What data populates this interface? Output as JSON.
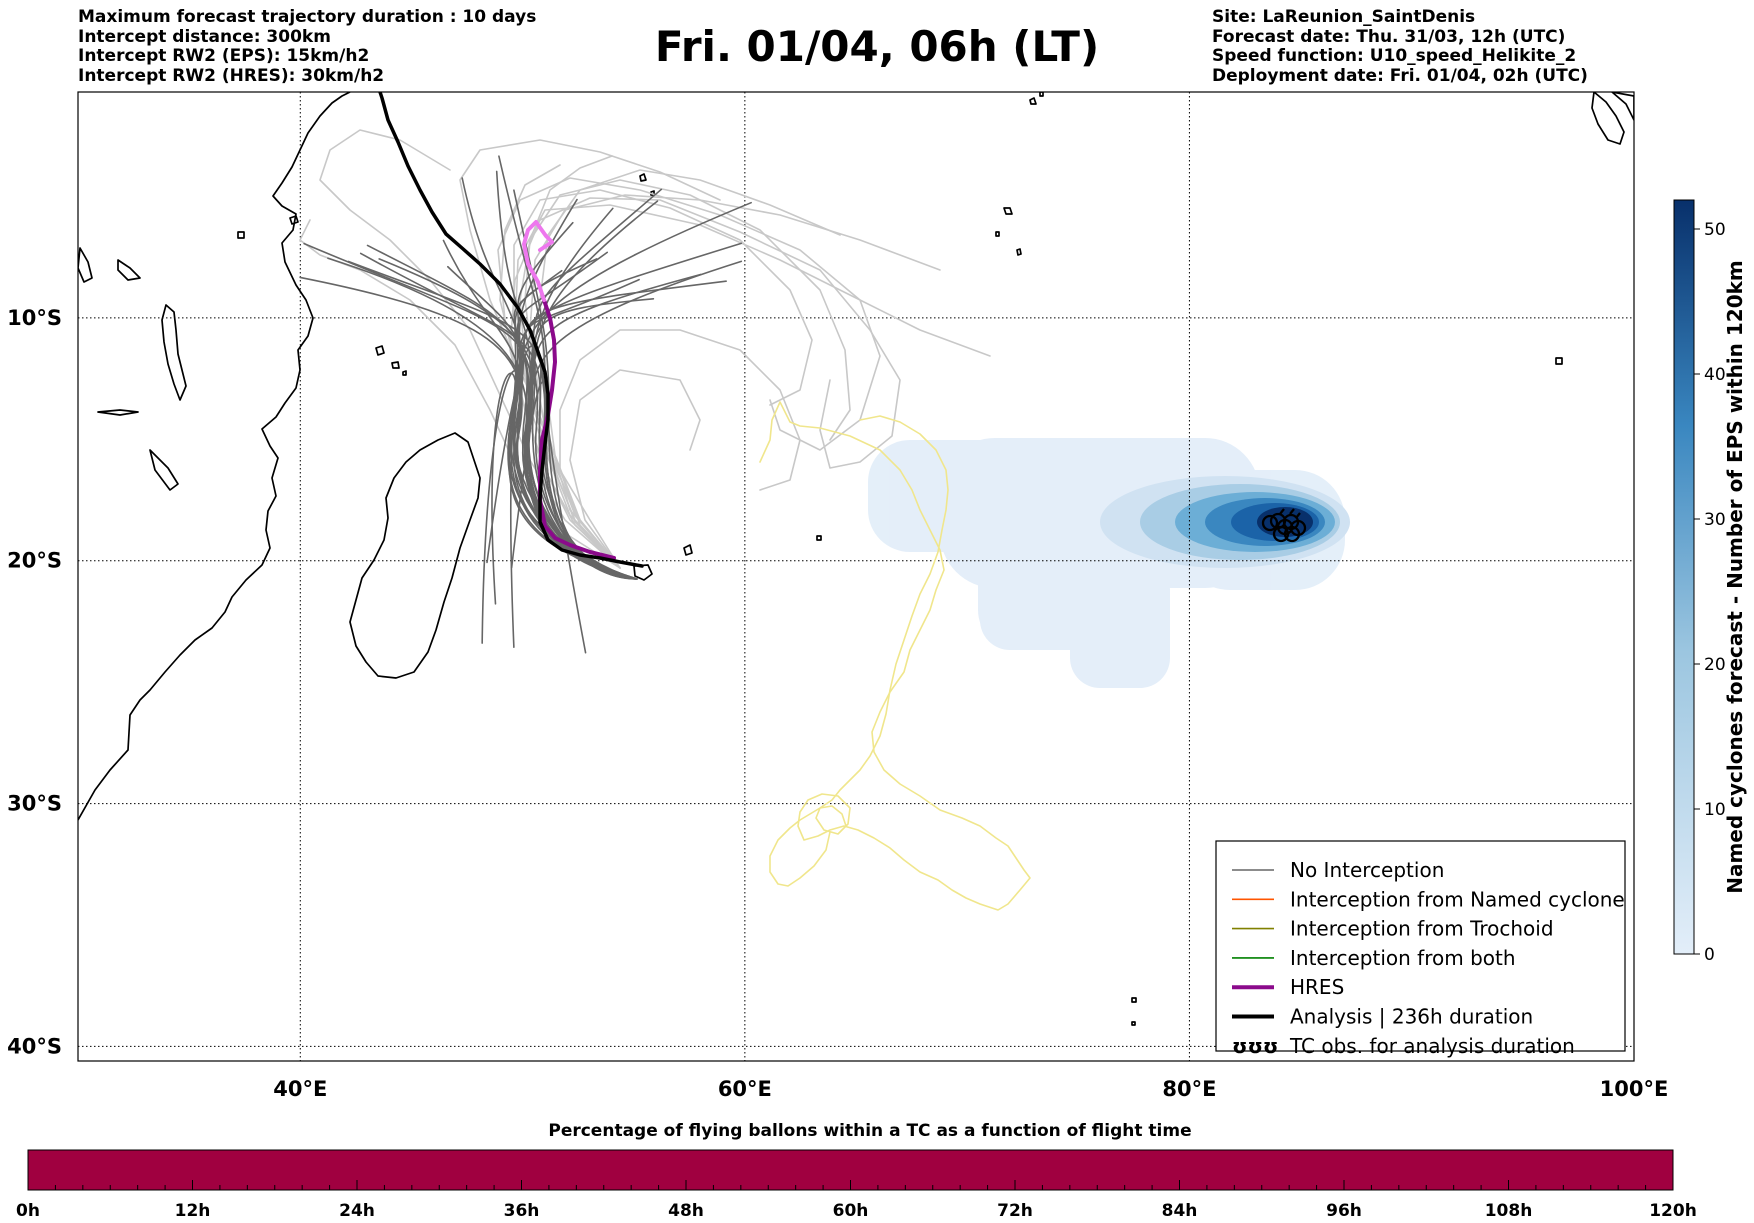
{
  "header": {
    "left": [
      "Maximum forecast trajectory duration : 10 days",
      "Intercept distance: 300km",
      "Intercept RW2 (EPS):  15km/h2",
      "Intercept RW2 (HRES): 30km/h2"
    ],
    "title": "Fri. 01/04, 06h (LT)",
    "right": [
      "Site: LaReunion_SaintDenis",
      "Forecast date: Thu. 31/03, 12h (UTC)",
      "Speed function: U10_speed_Helikite_2",
      "Deployment date: Fri. 01/04, 02h (UTC)"
    ]
  },
  "map": {
    "lon_range": [
      30,
      100
    ],
    "lat_range": [
      -40.6,
      -0.7
    ],
    "lon_ticks": [
      {
        "value": 40,
        "label": "40°E"
      },
      {
        "value": 60,
        "label": "60°E"
      },
      {
        "value": 80,
        "label": "80°E"
      },
      {
        "value": 100,
        "label": "100°E"
      }
    ],
    "lat_ticks": [
      {
        "value": -10,
        "label": "10°S"
      },
      {
        "value": -20,
        "label": "20°S"
      },
      {
        "value": -30,
        "label": "30°S"
      },
      {
        "value": -40,
        "label": "40°S"
      }
    ],
    "launch_site": {
      "lon": 55.5,
      "lat": -21.0
    },
    "colors": {
      "no_interception": "#666666",
      "eps_far": "#c8c8c8",
      "named_cyclone": "#ff5500",
      "trochoid": "#808000",
      "both": "#008000",
      "hres": "#8b0a8b",
      "hres_end": "#ee77ee",
      "analysis": "#000000",
      "trochoid_track": "#f0e68c"
    },
    "legend": [
      {
        "key": "no_interception",
        "label": "No Interception"
      },
      {
        "key": "named_cyclone",
        "label": "Interception from Named cyclone"
      },
      {
        "key": "trochoid",
        "label": "Interception from Trochoid"
      },
      {
        "key": "both",
        "label": "Interception from both"
      },
      {
        "key": "hres",
        "label": "HRES"
      },
      {
        "key": "analysis",
        "label": "Analysis | 236h duration"
      },
      {
        "key": "tc_obs",
        "label": "TC obs. for analysis duration",
        "symbol": "ʊʊʊ"
      }
    ]
  },
  "colorbar": {
    "label": "Named cyclones forecast - Number of EPS within 120km",
    "min": 0,
    "max": 52,
    "ticks": [
      0,
      10,
      20,
      30,
      40,
      50
    ],
    "color_low": "#e3eef9",
    "color_high": "#08306b"
  },
  "flight_time": {
    "title": "Percentage of flying ballons within a TC as a function of flight time",
    "ticks": [
      "0h",
      "12h",
      "24h",
      "36h",
      "48h",
      "60h",
      "72h",
      "84h",
      "96h",
      "108h",
      "120h"
    ],
    "bar_color": "#a00040"
  }
}
